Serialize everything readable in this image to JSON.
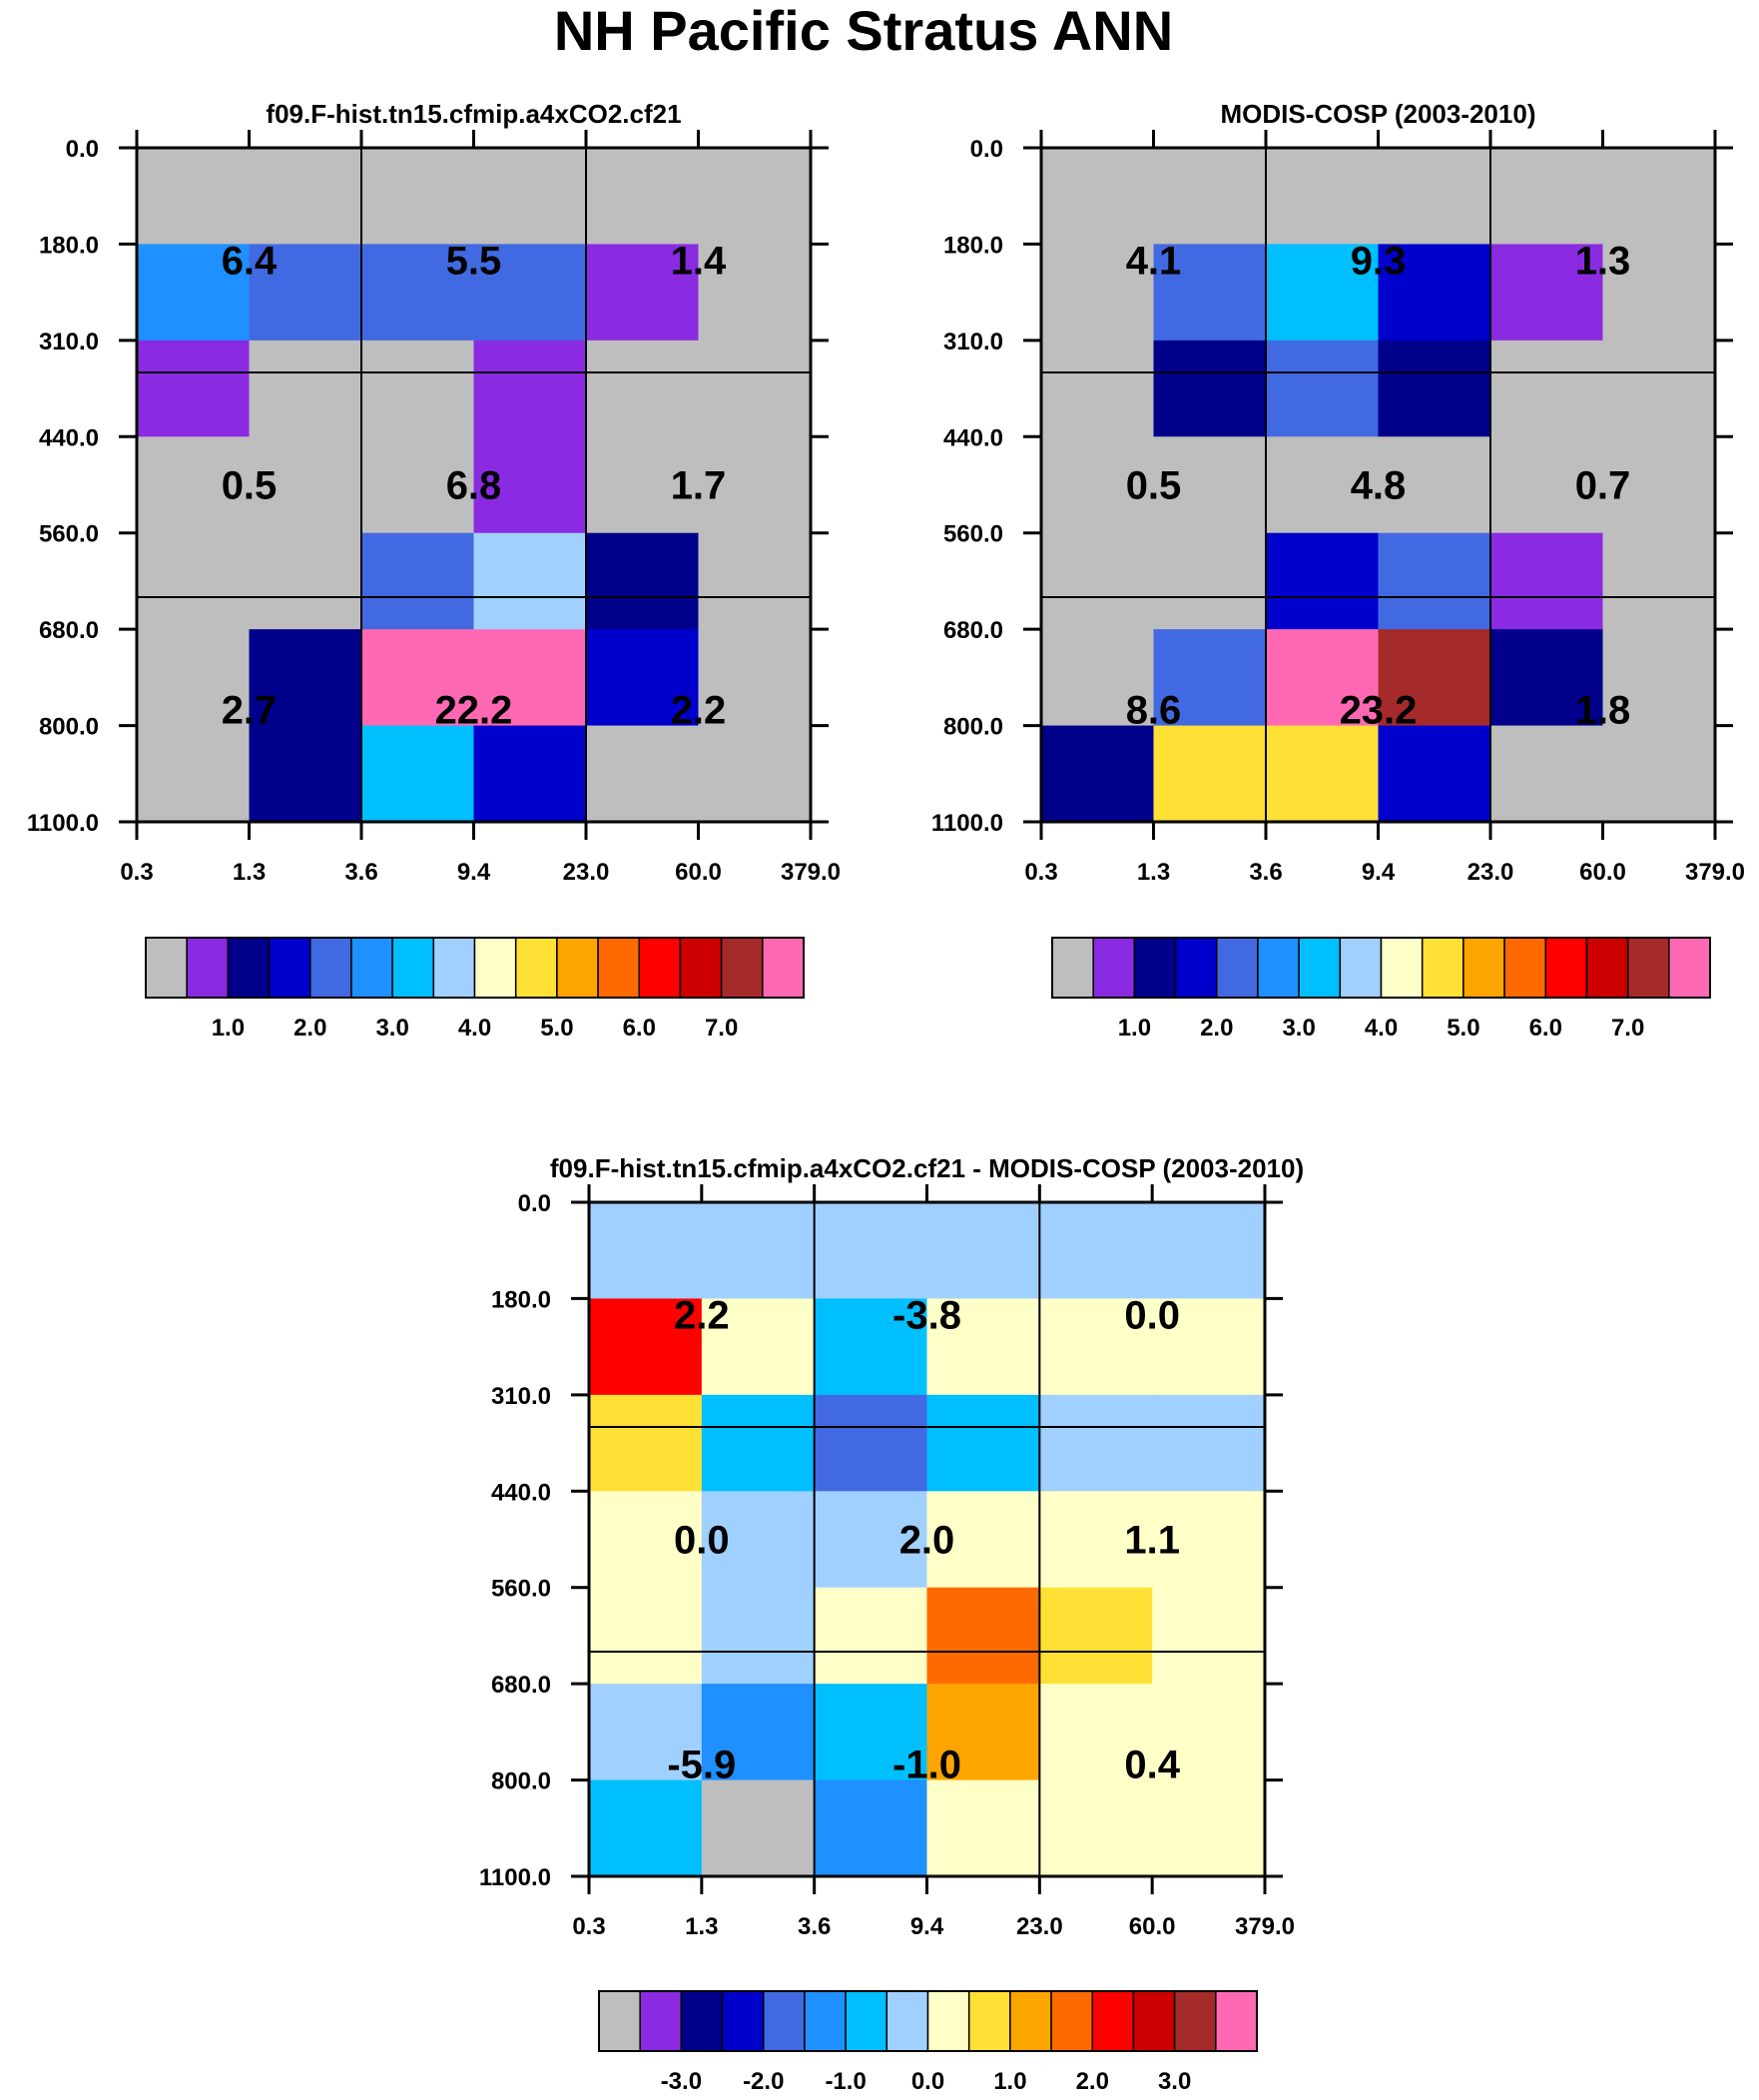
{
  "title": "NH Pacific Stratus ANN",
  "palette": [
    "#bebebe",
    "#8a2be2",
    "#00008b",
    "#0000cd",
    "#4169e1",
    "#1e90ff",
    "#00bfff",
    "#a0d0ff",
    "#ffffc8",
    "#ffe135",
    "#ffa500",
    "#ff6a00",
    "#ff0000",
    "#cd0000",
    "#a52a2a",
    "#ff69b4"
  ],
  "chart_data": [
    {
      "type": "heatmap",
      "title": "f09.F-hist.tn15.cfmip.a4xCO2.cf21",
      "x_ticks": [
        "0.3",
        "1.3",
        "3.6",
        "9.4",
        "23.0",
        "60.0",
        "379.0"
      ],
      "y_ticks": [
        "0.0",
        "180.0",
        "310.0",
        "440.0",
        "560.0",
        "680.0",
        "800.0",
        "1100.0"
      ],
      "colorbar_labels": [
        "1.0",
        "2.0",
        "3.0",
        "4.0",
        "5.0",
        "6.0",
        "7.0"
      ],
      "cell_colors": [
        [
          0,
          0,
          0,
          0,
          0,
          0
        ],
        [
          5,
          4,
          4,
          4,
          1,
          0
        ],
        [
          1,
          0,
          0,
          1,
          0,
          0
        ],
        [
          0,
          0,
          0,
          1,
          0,
          0
        ],
        [
          0,
          0,
          4,
          7,
          2,
          0
        ],
        [
          0,
          2,
          15,
          15,
          3,
          0
        ],
        [
          0,
          2,
          6,
          3,
          0,
          0
        ]
      ],
      "box_labels": [
        {
          "col": 0,
          "row": 0,
          "text": "6.4"
        },
        {
          "col": 1,
          "row": 0,
          "text": "5.5"
        },
        {
          "col": 2,
          "row": 0,
          "text": "1.4"
        },
        {
          "col": 0,
          "row": 1,
          "text": "0.5"
        },
        {
          "col": 1,
          "row": 1,
          "text": "6.8"
        },
        {
          "col": 2,
          "row": 1,
          "text": "1.7"
        },
        {
          "col": 0,
          "row": 2,
          "text": "2.7"
        },
        {
          "col": 1,
          "row": 2,
          "text": "22.2"
        },
        {
          "col": 2,
          "row": 2,
          "text": "2.2"
        }
      ]
    },
    {
      "type": "heatmap",
      "title": "MODIS-COSP (2003-2010)",
      "x_ticks": [
        "0.3",
        "1.3",
        "3.6",
        "9.4",
        "23.0",
        "60.0",
        "379.0"
      ],
      "y_ticks": [
        "0.0",
        "180.0",
        "310.0",
        "440.0",
        "560.0",
        "680.0",
        "800.0",
        "1100.0"
      ],
      "colorbar_labels": [
        "1.0",
        "2.0",
        "3.0",
        "4.0",
        "5.0",
        "6.0",
        "7.0"
      ],
      "cell_colors": [
        [
          0,
          0,
          0,
          0,
          0,
          0
        ],
        [
          0,
          4,
          6,
          3,
          1,
          0
        ],
        [
          0,
          2,
          4,
          2,
          0,
          0
        ],
        [
          0,
          0,
          0,
          0,
          0,
          0
        ],
        [
          0,
          0,
          3,
          4,
          1,
          0
        ],
        [
          0,
          4,
          15,
          14,
          2,
          0
        ],
        [
          2,
          9,
          9,
          3,
          0,
          0
        ]
      ],
      "box_labels": [
        {
          "col": 0,
          "row": 0,
          "text": "4.1"
        },
        {
          "col": 1,
          "row": 0,
          "text": "9.3"
        },
        {
          "col": 2,
          "row": 0,
          "text": "1.3"
        },
        {
          "col": 0,
          "row": 1,
          "text": "0.5"
        },
        {
          "col": 1,
          "row": 1,
          "text": "4.8"
        },
        {
          "col": 2,
          "row": 1,
          "text": "0.7"
        },
        {
          "col": 0,
          "row": 2,
          "text": "8.6"
        },
        {
          "col": 1,
          "row": 2,
          "text": "23.2"
        },
        {
          "col": 2,
          "row": 2,
          "text": "1.8"
        }
      ]
    },
    {
      "type": "heatmap",
      "title": "f09.F-hist.tn15.cfmip.a4xCO2.cf21 - MODIS-COSP (2003-2010)",
      "x_ticks": [
        "0.3",
        "1.3",
        "3.6",
        "9.4",
        "23.0",
        "60.0",
        "379.0"
      ],
      "y_ticks": [
        "0.0",
        "180.0",
        "310.0",
        "440.0",
        "560.0",
        "680.0",
        "800.0",
        "1100.0"
      ],
      "colorbar_labels": [
        "-3.0",
        "-2.0",
        "-1.0",
        "0.0",
        "1.0",
        "2.0",
        "3.0"
      ],
      "cell_colors": [
        [
          7,
          7,
          7,
          7,
          7,
          7
        ],
        [
          12,
          8,
          6,
          8,
          8,
          8
        ],
        [
          9,
          6,
          4,
          6,
          7,
          7
        ],
        [
          8,
          7,
          7,
          8,
          8,
          8
        ],
        [
          8,
          7,
          8,
          11,
          9,
          8
        ],
        [
          7,
          5,
          6,
          10,
          8,
          8
        ],
        [
          6,
          0,
          5,
          8,
          8,
          8
        ]
      ],
      "box_labels": [
        {
          "col": 0,
          "row": 0,
          "text": "2.2"
        },
        {
          "col": 1,
          "row": 0,
          "text": "-3.8"
        },
        {
          "col": 2,
          "row": 0,
          "text": "0.0"
        },
        {
          "col": 0,
          "row": 1,
          "text": "0.0"
        },
        {
          "col": 1,
          "row": 1,
          "text": "2.0"
        },
        {
          "col": 2,
          "row": 1,
          "text": "1.1"
        },
        {
          "col": 0,
          "row": 2,
          "text": "-5.9"
        },
        {
          "col": 1,
          "row": 2,
          "text": "-1.0"
        },
        {
          "col": 2,
          "row": 2,
          "text": "0.4"
        }
      ]
    }
  ]
}
